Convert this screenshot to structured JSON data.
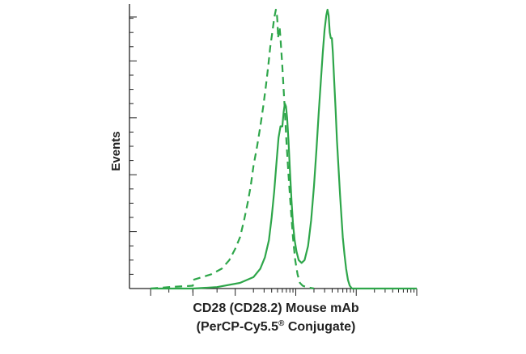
{
  "chart_data": {
    "type": "line",
    "xlabel_line1": "CD28 (CD28.2) Mouse mAb",
    "xlabel_line2": "(PerCP-Cy5.5",
    "xlabel_reg": "®",
    "xlabel_line2_end": " Conjugate)",
    "ylabel": "Events",
    "x_scale": "log",
    "xlim": [
      -100,
      100000
    ],
    "ylim": [
      0,
      100
    ],
    "grid": false,
    "legend": "none",
    "color": "#2ea64a",
    "series": [
      {
        "style": "dashed",
        "points": [
          [
            -100,
            0
          ],
          [
            -50,
            0.5
          ],
          [
            -20,
            1
          ],
          [
            0,
            2
          ],
          [
            20,
            3
          ],
          [
            40,
            5
          ],
          [
            60,
            7
          ],
          [
            80,
            10
          ],
          [
            100,
            14
          ],
          [
            120,
            18
          ],
          [
            140,
            24
          ],
          [
            160,
            30
          ],
          [
            180,
            36
          ],
          [
            200,
            43
          ],
          [
            230,
            50
          ],
          [
            260,
            57
          ],
          [
            290,
            64
          ],
          [
            320,
            71
          ],
          [
            350,
            78
          ],
          [
            380,
            85
          ],
          [
            410,
            90
          ],
          [
            440,
            95
          ],
          [
            470,
            98
          ],
          [
            490,
            96
          ],
          [
            500,
            93
          ],
          [
            510,
            88
          ],
          [
            525,
            91
          ],
          [
            540,
            92
          ],
          [
            560,
            88
          ],
          [
            600,
            78
          ],
          [
            650,
            65
          ],
          [
            700,
            52
          ],
          [
            760,
            40
          ],
          [
            830,
            28
          ],
          [
            900,
            18
          ],
          [
            980,
            10
          ],
          [
            1070,
            5
          ],
          [
            1170,
            2
          ],
          [
            1300,
            1
          ],
          [
            1500,
            0.5
          ],
          [
            2000,
            0
          ]
        ]
      },
      {
        "style": "solid",
        "points": [
          [
            -100,
            0
          ],
          [
            -20,
            0
          ],
          [
            50,
            0.5
          ],
          [
            120,
            2
          ],
          [
            200,
            4
          ],
          [
            260,
            7
          ],
          [
            310,
            11
          ],
          [
            360,
            17
          ],
          [
            400,
            25
          ],
          [
            440,
            34
          ],
          [
            480,
            44
          ],
          [
            520,
            53
          ],
          [
            560,
            57
          ],
          [
            600,
            57
          ],
          [
            630,
            62
          ],
          [
            660,
            65
          ],
          [
            690,
            64
          ],
          [
            720,
            60
          ],
          [
            760,
            52
          ],
          [
            800,
            42
          ],
          [
            850,
            31
          ],
          [
            900,
            23
          ],
          [
            960,
            17
          ],
          [
            1030,
            13
          ],
          [
            1120,
            10
          ],
          [
            1250,
            9
          ],
          [
            1400,
            10
          ],
          [
            1600,
            15
          ],
          [
            1800,
            24
          ],
          [
            2000,
            36
          ],
          [
            2200,
            49
          ],
          [
            2400,
            62
          ],
          [
            2600,
            73
          ],
          [
            2800,
            83
          ],
          [
            3000,
            91
          ],
          [
            3200,
            96
          ],
          [
            3350,
            98
          ],
          [
            3500,
            96
          ],
          [
            3650,
            90
          ],
          [
            3800,
            88
          ],
          [
            3950,
            88
          ],
          [
            4100,
            83
          ],
          [
            4300,
            74
          ],
          [
            4550,
            63
          ],
          [
            4800,
            52
          ],
          [
            5100,
            42
          ],
          [
            5400,
            33
          ],
          [
            5700,
            25
          ],
          [
            6000,
            18
          ],
          [
            6400,
            12
          ],
          [
            6800,
            7
          ],
          [
            7300,
            3
          ],
          [
            7800,
            1
          ],
          [
            8500,
            0
          ],
          [
            100000,
            0
          ]
        ]
      }
    ]
  }
}
